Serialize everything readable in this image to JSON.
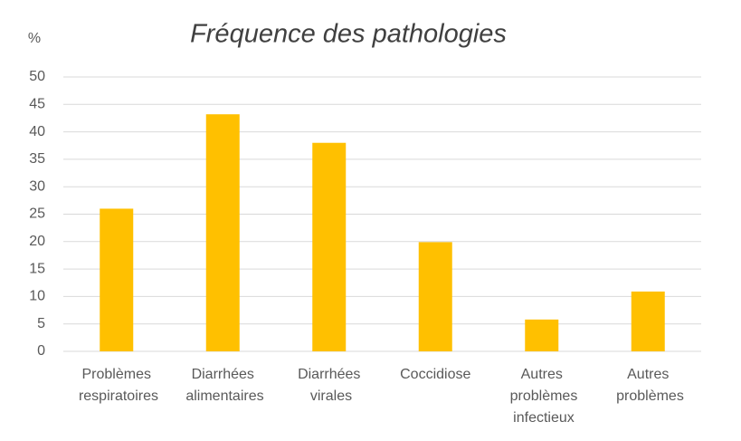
{
  "chart_data": {
    "type": "bar",
    "title": "Fréquence des pathologies",
    "y_label": "%",
    "categories": [
      "Problèmes respiratoires",
      "Diarrhées alimentaires",
      "Diarrhées virales",
      "Coccidiose",
      "Autres problèmes infectieux",
      "Autres problèmes"
    ],
    "values": [
      26,
      43.2,
      38,
      19.9,
      5.8,
      10.9
    ],
    "color": "#ffc000",
    "ylim": [
      0,
      50
    ],
    "yticks": [
      0,
      5,
      10,
      15,
      20,
      25,
      30,
      35,
      40,
      45,
      50
    ],
    "grid": true
  }
}
